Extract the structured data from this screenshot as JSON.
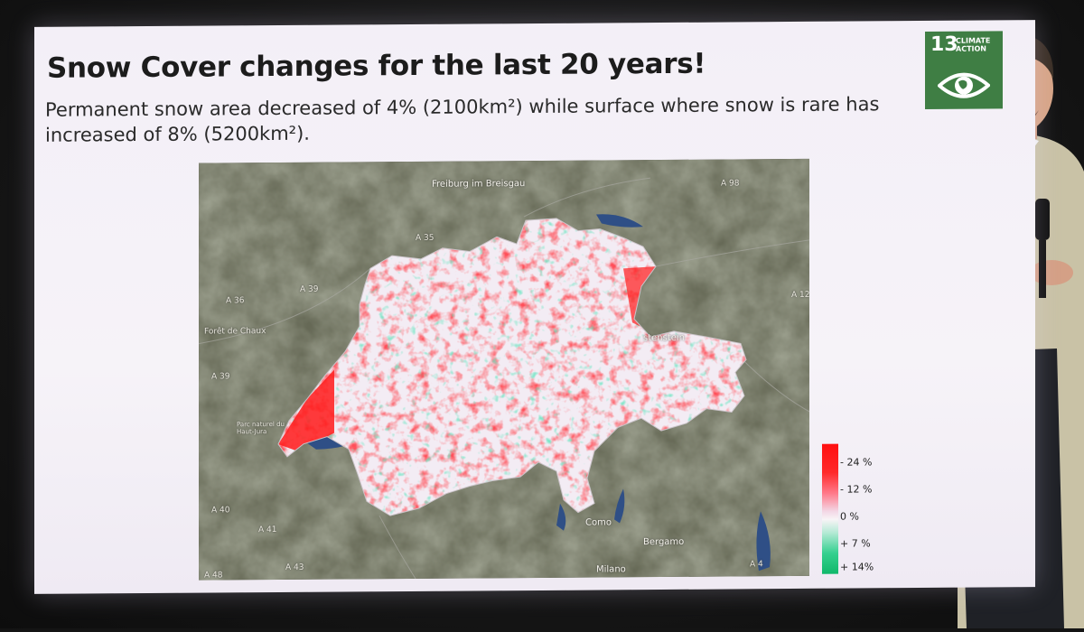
{
  "slide": {
    "title": "Snow Cover changes for the last 20 years!",
    "subtitle": "Permanent snow area decreased of 4% (2100km²) while surface where snow is rare has increased of 8% (5200km²)."
  },
  "badge": {
    "number": "13",
    "label": "CLIMATE ACTION",
    "color": "#3f7e44",
    "icon": "eye-globe-icon"
  },
  "legend": {
    "ticks": [
      "- 24 %",
      "- 12 %",
      "0 %",
      "+ 7 %",
      "+ 14%"
    ],
    "colors": [
      "#ff1010",
      "#ff6a7a",
      "#f8f4f6",
      "#7fdcb4",
      "#10b86a"
    ]
  },
  "map": {
    "labels": [
      "Freiburg im Breisgau",
      "A 98",
      "A 35",
      "A 36",
      "A 39",
      "Forêt de Chaux",
      "A 39",
      "A 40",
      "A 41",
      "A 43",
      "A 48",
      "A 12",
      "A 4",
      "stenstein",
      "Como",
      "Bergamo",
      "Milano",
      "Parc naturel du Haut-Jura"
    ],
    "colors": {
      "decrease": "#ff1a1a",
      "neutral": "#f4eef5",
      "increase": "#22c47c"
    }
  }
}
